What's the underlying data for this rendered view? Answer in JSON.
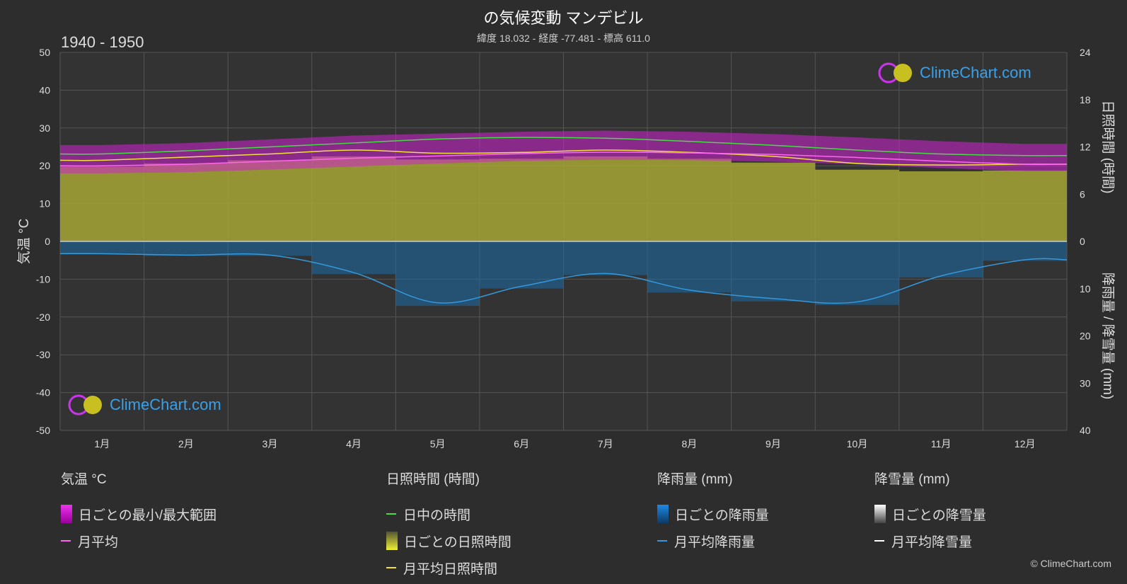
{
  "header": {
    "title": "の気候変動 マンデビル",
    "subtitle": "緯度 18.032 - 経度 -77.481 - 標高 611.0",
    "period": "1940 - 1950"
  },
  "branding": {
    "logo_text": "ClimeChart.com",
    "copyright": "© ClimeChart.com"
  },
  "colors": {
    "background": "#2d2d2d",
    "temp_range": "#d020d0",
    "temp_avg": "#ff66ee",
    "daylight": "#44dd44",
    "sunshine_fill": "#a6a635",
    "sunshine_avg": "#f0e040",
    "rain_fill": "#1a6aa8",
    "rain_avg": "#3399dd",
    "snow": "#ffffff"
  },
  "chart_data": {
    "type": "area",
    "categories": [
      "1月",
      "2月",
      "3月",
      "4月",
      "5月",
      "6月",
      "7月",
      "8月",
      "9月",
      "10月",
      "11月",
      "12月"
    ],
    "left_axis": {
      "label": "気温 °C",
      "ylim": [
        -50,
        50
      ],
      "ticks": [
        "50",
        "40",
        "30",
        "20",
        "10",
        "0",
        "-10",
        "-20",
        "-30",
        "-40",
        "-50"
      ]
    },
    "right_axis_top": {
      "label": "日照時間 (時間)",
      "ylim": [
        0,
        24
      ],
      "ticks": [
        "24",
        "18",
        "12",
        "6",
        "0"
      ]
    },
    "right_axis_bottom": {
      "label": "降雨量 / 降雪量 (mm)",
      "ylim": [
        0,
        40
      ],
      "ticks": [
        "0",
        "10",
        "20",
        "30",
        "40"
      ]
    },
    "grid": true,
    "series": [
      {
        "name": "日中の時間",
        "axis": "sunshine",
        "values": [
          11.1,
          11.5,
          12.0,
          12.5,
          13.0,
          13.2,
          13.1,
          12.7,
          12.2,
          11.6,
          11.1,
          10.9
        ]
      },
      {
        "name": "月平均日照時間",
        "axis": "sunshine",
        "values": [
          10.3,
          10.7,
          11.1,
          11.6,
          11.2,
          11.3,
          11.6,
          11.3,
          10.8,
          9.9,
          9.7,
          9.8
        ]
      },
      {
        "name": "月平均",
        "axis": "temperature",
        "values": [
          20.0,
          20.4,
          21.2,
          22.0,
          22.6,
          23.2,
          23.6,
          23.4,
          23.0,
          22.2,
          21.2,
          20.4
        ]
      },
      {
        "name": "日ごとの最小/最大範囲",
        "axis": "temperature",
        "min": [
          18.0,
          18.3,
          19.0,
          19.8,
          20.6,
          21.3,
          21.6,
          21.5,
          21.1,
          20.4,
          19.4,
          18.6
        ],
        "max": [
          25.5,
          26.0,
          27.0,
          28.0,
          28.5,
          29.0,
          29.3,
          29.0,
          28.4,
          27.5,
          26.5,
          25.8
        ]
      },
      {
        "name": "月平均降雨量",
        "axis": "precipitation",
        "values": [
          2.6,
          2.9,
          2.9,
          6.6,
          13.0,
          9.5,
          6.8,
          10.3,
          12.1,
          12.8,
          7.3,
          3.9
        ]
      },
      {
        "name": "月平均降雪量",
        "axis": "precipitation",
        "values": [
          0,
          0,
          0,
          0,
          0,
          0,
          0,
          0,
          0,
          0,
          0,
          0
        ]
      }
    ]
  },
  "legend": {
    "temperature": {
      "title": "気温 °C",
      "items": [
        "日ごとの最小/最大範囲",
        "月平均"
      ]
    },
    "sunshine": {
      "title": "日照時間 (時間)",
      "items": [
        "日中の時間",
        "日ごとの日照時間",
        "月平均日照時間"
      ]
    },
    "rain": {
      "title": "降雨量 (mm)",
      "items": [
        "日ごとの降雨量",
        "月平均降雨量"
      ]
    },
    "snow": {
      "title": "降雪量 (mm)",
      "items": [
        "日ごとの降雪量",
        "月平均降雪量"
      ]
    }
  }
}
